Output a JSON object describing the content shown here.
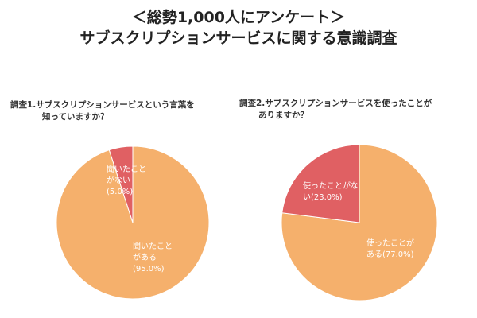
{
  "header": {
    "title_line1": "＜総勢1,000人にアンケート＞",
    "title_line2": "サブスクリプションサービスに関する意識調査"
  },
  "colors": {
    "major": "#f5b06c",
    "minor": "#e06063",
    "label_text": "#ffffff"
  },
  "chart_data": [
    {
      "type": "pie",
      "question_line1": "調査1.サブスクリプションサービスという言葉を",
      "question_line2": "知っていますか？",
      "slices": [
        {
          "label_lines": [
            "聞いたこと",
            "がある",
            "(95.0%)"
          ],
          "value": 95.0,
          "color": "#f5b06c"
        },
        {
          "label_lines": [
            "聞いたこと",
            "がない",
            "(5.0%)"
          ],
          "value": 5.0,
          "color": "#e06063"
        }
      ]
    },
    {
      "type": "pie",
      "question_line1": "調査2.サブスクリプションサービスを使ったことが",
      "question_line2": "ありますか？",
      "slices": [
        {
          "label_lines": [
            "使ったことが",
            "ある(77.0%)"
          ],
          "value": 77.0,
          "color": "#f5b06c"
        },
        {
          "label_lines": [
            "使ったことがな",
            "い(23.0%)"
          ],
          "value": 23.0,
          "color": "#e06063"
        }
      ]
    }
  ]
}
